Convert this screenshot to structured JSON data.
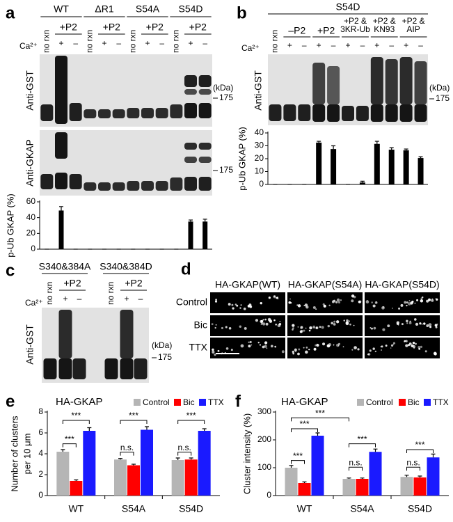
{
  "panel_a": {
    "label": "a",
    "ion": "Ca²⁺",
    "groups": [
      {
        "name": "WT",
        "treatment": "+P2",
        "lanes": [
          "no rxn",
          "+",
          "–"
        ]
      },
      {
        "name": "ΔR1",
        "treatment": "+P2",
        "lanes": [
          "no rxn",
          "+",
          "–"
        ]
      },
      {
        "name": "S54A",
        "treatment": "+P2",
        "lanes": [
          "no rxn",
          "+",
          "–"
        ]
      },
      {
        "name": "S54D",
        "treatment": "+P2",
        "lanes": [
          "no rxn",
          "+",
          "–"
        ]
      }
    ],
    "blots": [
      {
        "antibody": "Anti-GST",
        "unit": "(kDa)",
        "marker": "175"
      },
      {
        "antibody": "Anti-GKAP",
        "marker": "175"
      }
    ]
  },
  "panel_b": {
    "label": "b",
    "title": "S54D",
    "ion": "Ca²⁺",
    "control_lane": "no rxn",
    "groups": [
      {
        "treatment": [
          "–P2"
        ],
        "lanes": [
          "+",
          "–"
        ]
      },
      {
        "treatment": [
          "+P2"
        ],
        "lanes": [
          "+",
          "–"
        ]
      },
      {
        "treatment": [
          "+P2 &",
          "3KR-Ub"
        ],
        "lanes": [
          "+",
          "–"
        ]
      },
      {
        "treatment": [
          "+P2 &",
          "KN93"
        ],
        "lanes": [
          "+",
          "–"
        ]
      },
      {
        "treatment": [
          "+P2 &",
          "AIP"
        ],
        "lanes": [
          "+",
          "–"
        ]
      }
    ],
    "blot": {
      "antibody": "Anti-GST",
      "unit": "(kDa)",
      "marker": "175"
    }
  },
  "panel_c": {
    "label": "c",
    "ion": "Ca²⁺",
    "groups": [
      {
        "name": "S340&384A",
        "treatment": "+P2",
        "lanes": [
          "no rxn",
          "+",
          "–"
        ]
      },
      {
        "name": "S340&384D",
        "treatment": "+P2",
        "lanes": [
          "no rxn",
          "+",
          "–"
        ]
      }
    ],
    "blot": {
      "antibody": "Anti-GST",
      "unit": "(kDa)",
      "marker": "175"
    }
  },
  "panel_d": {
    "label": "d",
    "columns": [
      "HA-GKAP(WT)",
      "HA-GKAP(S54A)",
      "HA-GKAP(S54D)"
    ],
    "rows": [
      "Control",
      "Bic",
      "TTX"
    ]
  },
  "panel_e": {
    "label": "e"
  },
  "panel_f": {
    "label": "f"
  },
  "chart_data": [
    {
      "type": "bar",
      "ylabel": "p-Ub GKAP (%)",
      "categories": [
        null,
        null,
        null,
        null,
        null,
        null,
        null,
        null,
        null,
        null,
        null,
        null
      ],
      "values": [
        0,
        49,
        0,
        0,
        0,
        0,
        0,
        0,
        0,
        0,
        35,
        35
      ],
      "errors": [
        0,
        5,
        0,
        0,
        0,
        0,
        0,
        0,
        0,
        0,
        2,
        3
      ],
      "color": "#000000",
      "ylim": [
        0,
        60
      ],
      "yticks": [
        0,
        20,
        40,
        60
      ]
    },
    {
      "type": "bar",
      "ylabel": "p-Ub GKAP (%)",
      "categories": [
        null,
        null,
        null,
        null,
        null,
        null,
        null,
        null,
        null,
        null,
        null
      ],
      "values": [
        0,
        0,
        0,
        32.5,
        27.5,
        0,
        1.5,
        31.5,
        27,
        26.5,
        20.5
      ],
      "errors": [
        0,
        0,
        0,
        1,
        2.5,
        0,
        1,
        2,
        1.5,
        1,
        1
      ],
      "color": "#000000",
      "ylim": [
        0,
        40
      ],
      "yticks": [
        0,
        10,
        20,
        30,
        40
      ]
    },
    {
      "type": "grouped_bar",
      "title": "HA-GKAP",
      "ylabel": [
        "Number of clusters",
        "per 10 μm"
      ],
      "categories": [
        "WT",
        "S54A",
        "S54D"
      ],
      "series": [
        {
          "name": "Control",
          "color": "#b5b5b5",
          "values": [
            4.2,
            3.45,
            3.4
          ],
          "errors": [
            0.2,
            0.1,
            0.2
          ]
        },
        {
          "name": "Bic",
          "color": "#ff0000",
          "values": [
            1.4,
            2.9,
            3.45
          ],
          "errors": [
            0.1,
            0.1,
            0.15
          ]
        },
        {
          "name": "TTX",
          "color": "#1a1aff",
          "values": [
            6.2,
            6.3,
            6.2
          ],
          "errors": [
            0.3,
            0.3,
            0.2
          ]
        }
      ],
      "ylim": [
        0,
        8
      ],
      "yticks": [
        0,
        2,
        4,
        6,
        8
      ],
      "annotations": [
        "***",
        "***",
        "n.s.",
        "***",
        "n.s.",
        "***"
      ]
    },
    {
      "type": "grouped_bar",
      "title": "HA-GKAP",
      "ylabel": [
        "Cluster intensity (%)"
      ],
      "categories": [
        "WT",
        "S54A",
        "S54D"
      ],
      "series": [
        {
          "name": "Control",
          "color": "#b5b5b5",
          "values": [
            100,
            60,
            67
          ],
          "errors": [
            8,
            3,
            6
          ]
        },
        {
          "name": "Bic",
          "color": "#ff0000",
          "values": [
            45,
            60,
            65
          ],
          "errors": [
            4,
            3,
            5
          ]
        },
        {
          "name": "TTX",
          "color": "#1a1aff",
          "values": [
            215,
            157,
            137
          ],
          "errors": [
            10,
            10,
            12
          ]
        }
      ],
      "ylim": [
        0,
        300
      ],
      "yticks": [
        0,
        100,
        200,
        300
      ],
      "annotations": [
        "***",
        "***",
        "***",
        "n.s.",
        "***",
        "n.s.",
        "***"
      ]
    }
  ]
}
